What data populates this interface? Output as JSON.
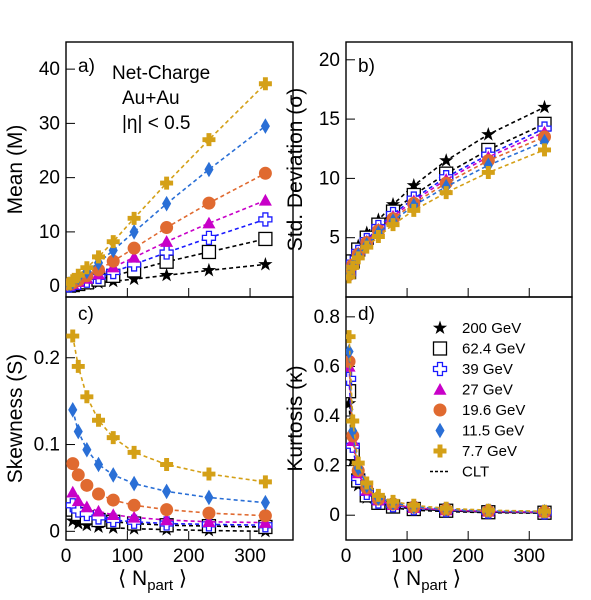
{
  "figure": {
    "xlabel_main": "⟨ N",
    "xlabel_sub": "part",
    "xlabel_close": " ⟩",
    "annotation_lines": [
      "Net-Charge",
      "Au+Au",
      "|η| < 0.5"
    ]
  },
  "legend": {
    "entries": [
      {
        "label": "200 GeV",
        "series": "200"
      },
      {
        "label": "62.4 GeV",
        "series": "62.4"
      },
      {
        "label": "39 GeV",
        "series": "39"
      },
      {
        "label": "27 GeV",
        "series": "27"
      },
      {
        "label": "19.6 GeV",
        "series": "19.6"
      },
      {
        "label": "11.5 GeV",
        "series": "11.5"
      },
      {
        "label": "7.7 GeV",
        "series": "7.7"
      },
      {
        "label": "CLT",
        "series": "clt"
      }
    ]
  },
  "series_styles": {
    "200": {
      "color": "#000000",
      "marker": "star-filled"
    },
    "62.4": {
      "color": "#000000",
      "marker": "square-open"
    },
    "39": {
      "color": "#1a1aff",
      "marker": "cross-open"
    },
    "27": {
      "color": "#c800c8",
      "marker": "triangle-filled"
    },
    "19.6": {
      "color": "#e06a30",
      "marker": "circle-filled"
    },
    "11.5": {
      "color": "#2a6fd6",
      "marker": "diamond-filled"
    },
    "7.7": {
      "color": "#d4a017",
      "marker": "cross-filled"
    }
  },
  "chart_data": [
    {
      "panel": "a)",
      "type": "scatter",
      "ylabel": "Mean (M)",
      "xlim": [
        0,
        370
      ],
      "ylim": [
        -2,
        45
      ],
      "xticks": [
        0,
        100,
        200,
        300
      ],
      "yticks": [
        0,
        10,
        20,
        30,
        40
      ],
      "x": [
        5,
        11,
        20,
        34,
        53,
        77,
        111,
        164,
        233,
        325
      ],
      "series": [
        {
          "key": "200",
          "values": [
            0.05,
            0.1,
            0.2,
            0.35,
            0.6,
            0.9,
            1.3,
            2.0,
            2.9,
            4.0
          ]
        },
        {
          "key": "62.4",
          "values": [
            0.1,
            0.2,
            0.4,
            0.7,
            1.2,
            1.9,
            2.9,
            4.5,
            6.3,
            8.7
          ]
        },
        {
          "key": "39",
          "values": [
            0.15,
            0.3,
            0.6,
            1.0,
            1.7,
            2.6,
            4.0,
            6.2,
            8.9,
            12.3
          ]
        },
        {
          "key": "27",
          "values": [
            0.2,
            0.4,
            0.8,
            1.4,
            2.2,
            3.5,
            5.3,
            8.2,
            11.6,
            15.8
          ]
        },
        {
          "key": "19.6",
          "values": [
            0.3,
            0.6,
            1.1,
            1.9,
            3.0,
            4.6,
            7.0,
            10.8,
            15.3,
            20.8
          ]
        },
        {
          "key": "11.5",
          "values": [
            0.4,
            0.8,
            1.6,
            2.7,
            4.3,
            6.6,
            10.0,
            15.2,
            21.5,
            29.5
          ]
        },
        {
          "key": "7.7",
          "values": [
            0.5,
            1.0,
            2.0,
            3.4,
            5.4,
            8.2,
            12.5,
            19.0,
            27.0,
            37.3
          ]
        }
      ]
    },
    {
      "panel": "b)",
      "type": "scatter",
      "ylabel": "Std. Deviation (σ)",
      "xlim": [
        0,
        370
      ],
      "ylim": [
        0,
        21.5
      ],
      "xticks": [
        0,
        100,
        200,
        300
      ],
      "yticks": [
        5,
        10,
        15,
        20
      ],
      "x": [
        5,
        11,
        20,
        34,
        53,
        77,
        111,
        164,
        233,
        325
      ],
      "series": [
        {
          "key": "200",
          "values": [
            2.3,
            3.3,
            4.3,
            5.4,
            6.5,
            7.8,
            9.4,
            11.5,
            13.7,
            16.0
          ]
        },
        {
          "key": "62.4",
          "values": [
            2.1,
            3.0,
            4.0,
            5.0,
            6.1,
            7.2,
            8.6,
            10.4,
            12.4,
            14.6
          ]
        },
        {
          "key": "39",
          "values": [
            2.0,
            2.9,
            3.8,
            4.8,
            5.9,
            7.0,
            8.3,
            10.1,
            12.0,
            14.2
          ]
        },
        {
          "key": "27",
          "values": [
            2.0,
            2.8,
            3.7,
            4.7,
            5.7,
            6.8,
            8.1,
            9.9,
            11.8,
            13.9
          ]
        },
        {
          "key": "19.6",
          "values": [
            1.9,
            2.7,
            3.6,
            4.6,
            5.6,
            6.6,
            7.9,
            9.6,
            11.5,
            13.5
          ]
        },
        {
          "key": "11.5",
          "values": [
            1.8,
            2.6,
            3.5,
            4.4,
            5.4,
            6.4,
            7.7,
            9.3,
            11.1,
            13.1
          ]
        },
        {
          "key": "7.7",
          "values": [
            1.7,
            2.5,
            3.3,
            4.2,
            5.1,
            6.1,
            7.3,
            8.8,
            10.5,
            12.4
          ]
        }
      ]
    },
    {
      "panel": "c)",
      "type": "scatter",
      "ylabel": "Skewness (S)",
      "xlim": [
        0,
        370
      ],
      "ylim": [
        -0.01,
        0.27
      ],
      "xticks": [
        0,
        100,
        200,
        300
      ],
      "yticks": [
        0,
        0.1,
        0.2
      ],
      "x": [
        11,
        20,
        34,
        53,
        77,
        111,
        164,
        233,
        325
      ],
      "series": [
        {
          "key": "200",
          "values": [
            0.012,
            0.009,
            0.007,
            0.005,
            0.004,
            0.003,
            0.002,
            0.001,
            0.0
          ]
        },
        {
          "key": "62.4",
          "values": [
            0.025,
            0.02,
            0.016,
            0.013,
            0.011,
            0.009,
            0.007,
            0.006,
            0.005
          ]
        },
        {
          "key": "39",
          "values": [
            0.03,
            0.024,
            0.02,
            0.016,
            0.013,
            0.011,
            0.009,
            0.008,
            0.007
          ]
        },
        {
          "key": "27",
          "values": [
            0.045,
            0.035,
            0.028,
            0.023,
            0.019,
            0.016,
            0.013,
            0.011,
            0.01
          ]
        },
        {
          "key": "19.6",
          "values": [
            0.078,
            0.065,
            0.053,
            0.043,
            0.036,
            0.03,
            0.025,
            0.021,
            0.018
          ]
        },
        {
          "key": "11.5",
          "values": [
            0.14,
            0.115,
            0.094,
            0.077,
            0.065,
            0.055,
            0.046,
            0.039,
            0.033
          ]
        },
        {
          "key": "7.7",
          "values": [
            0.225,
            0.19,
            0.155,
            0.128,
            0.108,
            0.091,
            0.077,
            0.066,
            0.057
          ]
        }
      ]
    },
    {
      "panel": "d)",
      "type": "scatter",
      "ylabel": "Kurtosis (κ)",
      "xlim": [
        0,
        370
      ],
      "ylim": [
        -0.1,
        0.88
      ],
      "xticks": [
        0,
        100,
        200,
        300
      ],
      "yticks": [
        0,
        0.2,
        0.4,
        0.6,
        0.8
      ],
      "x": [
        5,
        11,
        20,
        34,
        53,
        77,
        111,
        164,
        233,
        325
      ],
      "series": [
        {
          "key": "200",
          "values": [
            0.45,
            0.22,
            0.12,
            0.07,
            0.045,
            0.03,
            0.02,
            0.015,
            0.01,
            0.008
          ]
        },
        {
          "key": "62.4",
          "values": [
            0.5,
            0.25,
            0.14,
            0.08,
            0.05,
            0.035,
            0.025,
            0.018,
            0.012,
            0.01
          ]
        },
        {
          "key": "39",
          "values": [
            0.55,
            0.28,
            0.15,
            0.09,
            0.055,
            0.04,
            0.028,
            0.02,
            0.014,
            0.011
          ]
        },
        {
          "key": "27",
          "values": [
            0.6,
            0.3,
            0.17,
            0.1,
            0.06,
            0.042,
            0.03,
            0.021,
            0.015,
            0.012
          ]
        },
        {
          "key": "19.6",
          "values": [
            0.62,
            0.32,
            0.18,
            0.11,
            0.065,
            0.045,
            0.032,
            0.022,
            0.016,
            0.013
          ]
        },
        {
          "key": "11.5",
          "values": [
            0.66,
            0.34,
            0.19,
            0.12,
            0.07,
            0.05,
            0.035,
            0.024,
            0.017,
            0.014
          ]
        },
        {
          "key": "7.7",
          "values": [
            0.72,
            0.38,
            0.21,
            0.13,
            0.08,
            0.056,
            0.04,
            0.028,
            0.02,
            0.016
          ]
        }
      ]
    }
  ]
}
